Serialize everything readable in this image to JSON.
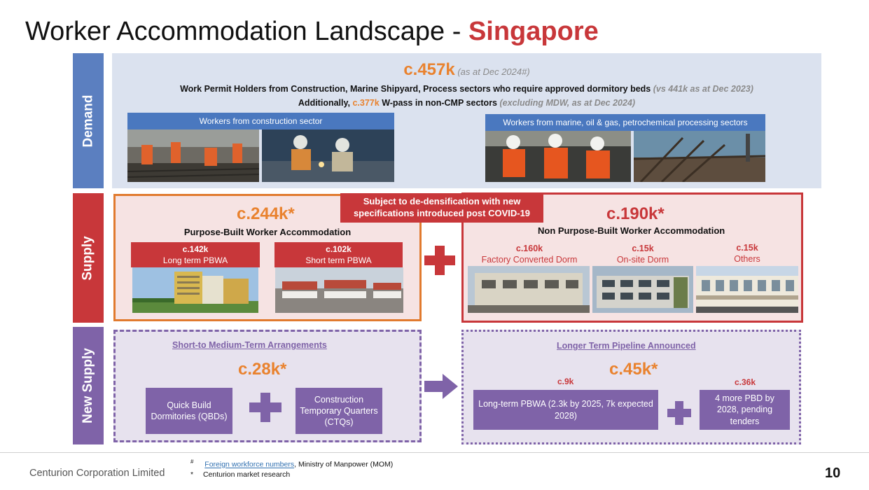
{
  "title": {
    "main": "Worker Accommodation Landscape - ",
    "accent": "Singapore"
  },
  "side_tabs": {
    "demand": "Demand",
    "supply": "Supply",
    "new_supply": "New Supply"
  },
  "demand": {
    "total": "c.457k",
    "total_note": "(as at Dec 2024#)",
    "line1": "Work Permit Holders from Construction, Marine Shipyard, Process sectors who require approved dormitory beds",
    "line1_note": "(vs 441k as at Dec 2023)",
    "line2_pre": "Additionally,",
    "line2_num": "c.377k",
    "line2_post": "W-pass in non-CMP sectors",
    "line2_note": "(excluding MDW, as at Dec 2024)",
    "label_construction": "Workers from construction sector",
    "label_marine": "Workers from marine, oil & gas, petrochemical processing sectors"
  },
  "supply": {
    "dedensification": "Subject to de-densification with new specifications introduced post COVID-19",
    "pbwa_total": "c.244k*",
    "pbwa_title": "Purpose-Built Worker Accommodation",
    "pbwa_long_num": "c.142k",
    "pbwa_long_label": "Long term PBWA",
    "pbwa_short_num": "c.102k",
    "pbwa_short_label": "Short term PBWA",
    "npbwa_total": "c.190k*",
    "npbwa_title": "Non Purpose-Built Worker Accommodation",
    "factory_num": "c.160k",
    "factory_label": "Factory Converted Dorm",
    "onsite_num": "c.15k",
    "onsite_label": "On-site Dorm",
    "others_num": "c.15k",
    "others_label": "Others"
  },
  "new_supply": {
    "short_head": "Short-to Medium-Term Arrangements",
    "short_total": "c.28k*",
    "qbd_label": "Quick Build Dormitories (QBDs)",
    "ctq_label": "Construction Temporary Quarters (CTQs)",
    "long_head": "Longer Term Pipeline Announced",
    "long_total": "c.45k*",
    "pbwa_num": "c.9k",
    "pbwa_label": "Long-term PBWA (2.3k by 2025, 7k expected 2028)",
    "pbd_num": "c.36k",
    "pbd_label": "4 more PBD by 2028, pending tenders"
  },
  "footer": {
    "company": "Centurion Corporation Limited",
    "fn1_mark": "#",
    "fn1_link": "Foreign workforce numbers",
    "fn1_rest": ", Ministry of Manpower (MOM)",
    "fn2_mark": "*",
    "fn2_text": "Centurion market research",
    "page": "10"
  },
  "colors": {
    "red": "#c8373a",
    "orange": "#e9822e",
    "blue": "#5b7fc0",
    "purple": "#7f63a8"
  }
}
